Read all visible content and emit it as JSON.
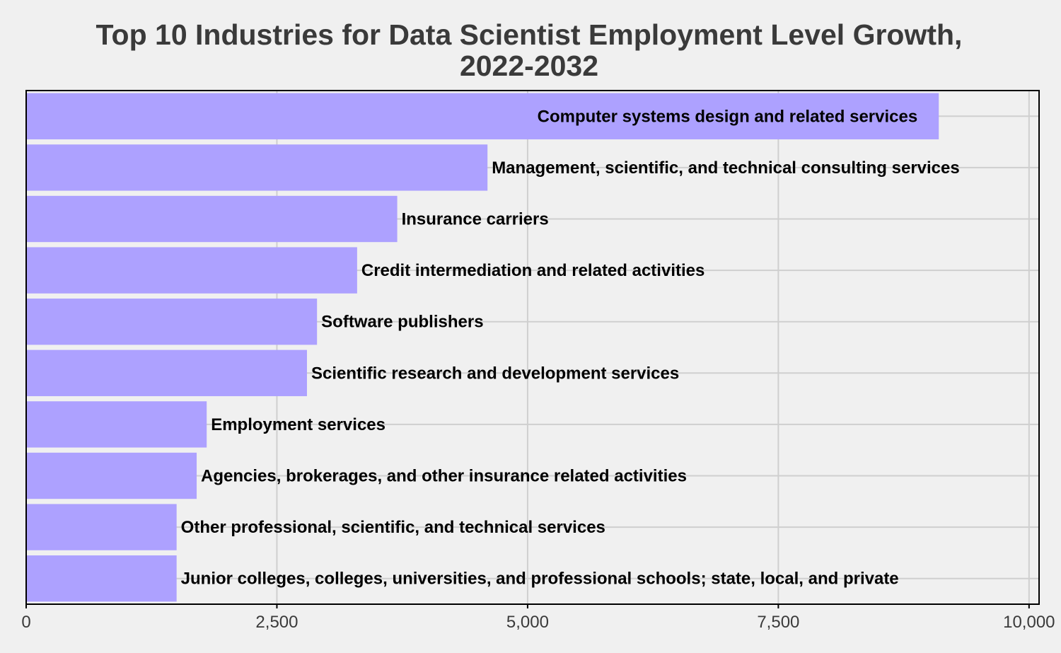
{
  "chart_data": {
    "type": "bar",
    "orientation": "horizontal",
    "title_lines": [
      "Top 10 Industries for Data Scientist Employment Level Growth,",
      "2022-2032"
    ],
    "xlabel": "",
    "ylabel": "",
    "xlim": [
      0,
      10100
    ],
    "xticks": [
      0,
      2500,
      5000,
      7500,
      10000
    ],
    "xtick_labels": [
      "0",
      "2,500",
      "5,000",
      "7,500",
      "10,000"
    ],
    "grid": true,
    "categories": [
      "Computer systems design and related services",
      "Management, scientific, and technical consulting services",
      "Insurance carriers",
      "Credit intermediation and related activities",
      "Software publishers",
      "Scientific research and development services",
      "Employment services",
      "Agencies, brokerages, and other insurance related activities",
      "Other professional, scientific, and technical services",
      "Junior colleges, colleges, universities, and professional schools; state, local, and private"
    ],
    "values": [
      9100,
      4600,
      3700,
      3300,
      2900,
      2800,
      1800,
      1700,
      1500,
      1500
    ],
    "label_inside_first_bar": true,
    "colors": {
      "bar": "#ada1ff",
      "background": "#f0f0f0",
      "grid": "#cfcfcf",
      "title": "#3a3a3a",
      "label": "#000000"
    }
  }
}
